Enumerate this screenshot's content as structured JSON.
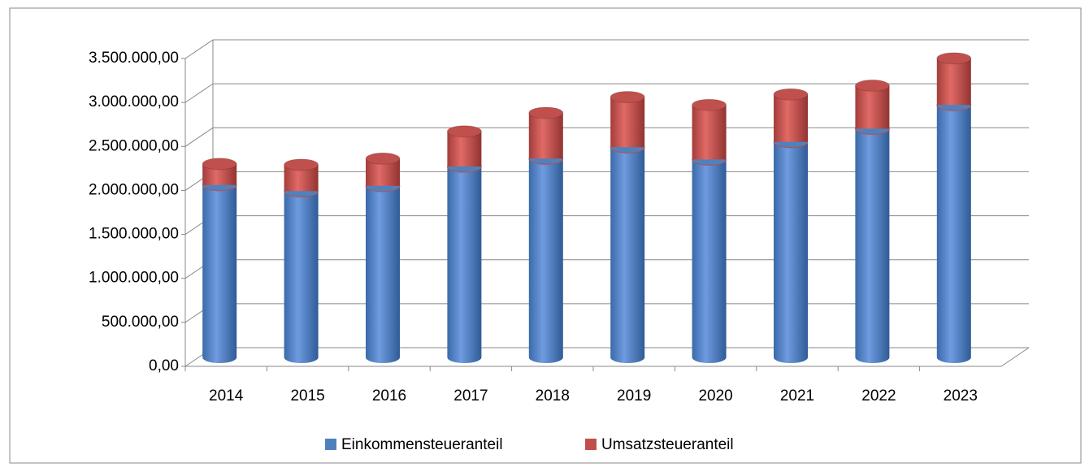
{
  "chart_data": {
    "type": "bar",
    "stacked": true,
    "categories": [
      "2014",
      "2015",
      "2016",
      "2017",
      "2018",
      "2019",
      "2020",
      "2021",
      "2022",
      "2023"
    ],
    "series": [
      {
        "name": "Einkommensteueranteil",
        "color": "#4f81bd",
        "values": [
          1960000,
          1890000,
          1950000,
          2170000,
          2260000,
          2390000,
          2250000,
          2450000,
          2600000,
          2870000
        ]
      },
      {
        "name": "Umsatzsteueranteil",
        "color": "#c0504d",
        "values": [
          240000,
          300000,
          310000,
          400000,
          520000,
          570000,
          620000,
          540000,
          490000,
          530000
        ]
      }
    ],
    "ylim": [
      0,
      3500000
    ],
    "yticks": [
      {
        "value": 0,
        "label": "0,00"
      },
      {
        "value": 500000,
        "label": "500.000,00"
      },
      {
        "value": 1000000,
        "label": "1.000.000,00"
      },
      {
        "value": 1500000,
        "label": "1.500.000,00"
      },
      {
        "value": 2000000,
        "label": "2.000.000,00"
      },
      {
        "value": 2500000,
        "label": "2.500.000,00"
      },
      {
        "value": 3000000,
        "label": "3.000.000,00"
      },
      {
        "value": 3500000,
        "label": "3.500.000,00"
      }
    ],
    "grid": true,
    "legend": "bottom"
  }
}
